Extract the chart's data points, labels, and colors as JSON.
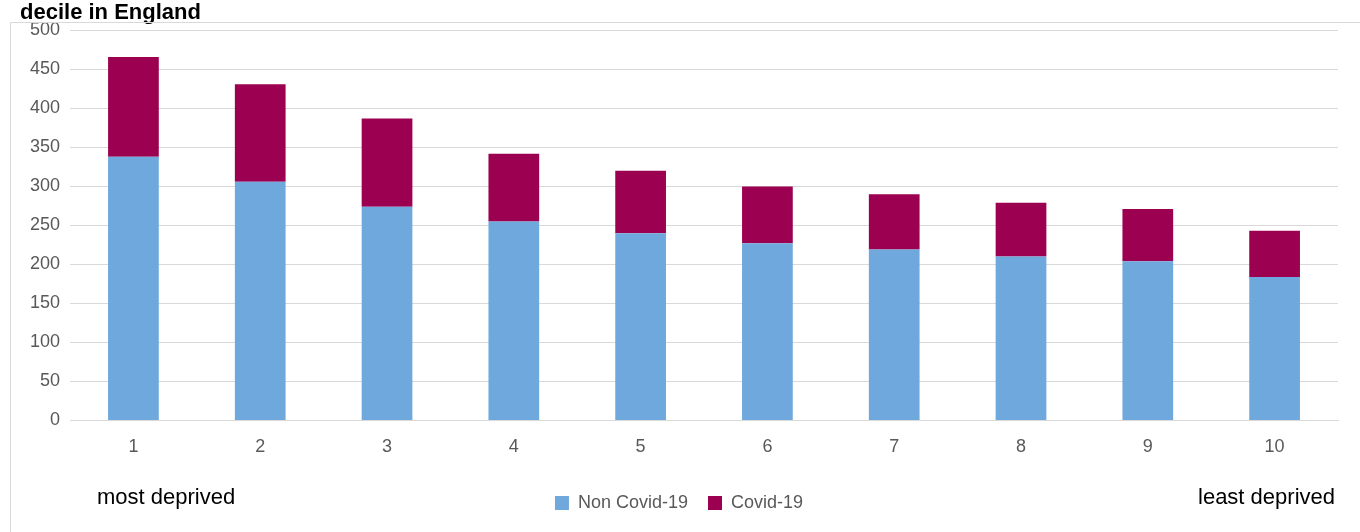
{
  "chart_data": {
    "type": "bar",
    "title": "decile in England",
    "stacked": true,
    "categories": [
      "1",
      "2",
      "3",
      "4",
      "5",
      "6",
      "7",
      "8",
      "9",
      "10"
    ],
    "series": [
      {
        "name": "Non Covid-19",
        "color": "#6fa8dc",
        "values": [
          338,
          306,
          274,
          255,
          240,
          227,
          219,
          210,
          204,
          184
        ]
      },
      {
        "name": "Covid-19",
        "color": "#9b0051",
        "values": [
          128,
          125,
          113,
          87,
          80,
          73,
          71,
          69,
          67,
          59
        ]
      }
    ],
    "ylim": [
      0,
      500
    ],
    "yticks": [
      0,
      50,
      100,
      150,
      200,
      250,
      300,
      350,
      400,
      450,
      500
    ],
    "grid": "y",
    "legend": "bottom",
    "annotations": [
      "most deprived",
      "least deprived"
    ]
  }
}
